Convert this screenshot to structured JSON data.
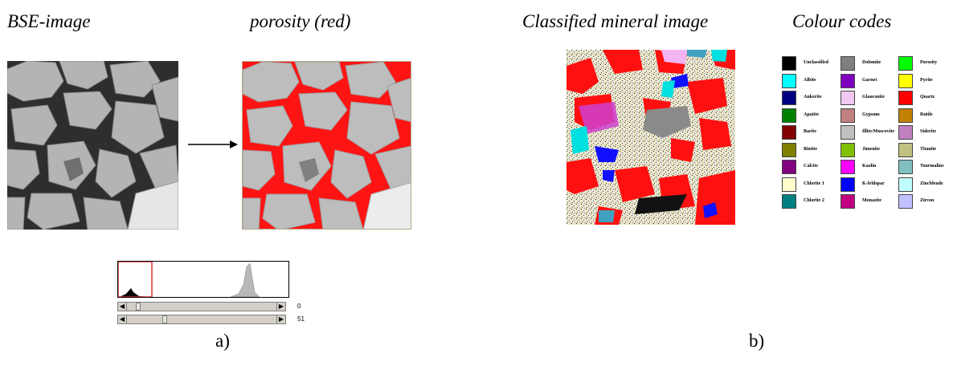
{
  "captions": {
    "bse": "BSE-image",
    "porosity": "porosity (red)",
    "classified": "Classified mineral image",
    "colour_codes": "Colour codes"
  },
  "panels": {
    "a": "a)",
    "b": "b)"
  },
  "sliders": {
    "top_value": "0",
    "bottom_value": "51",
    "top_fraction": 0.06,
    "bottom_fraction": 0.24
  },
  "legend": {
    "columns": [
      [
        {
          "label": "Unclassified",
          "color": "#000000"
        },
        {
          "label": "Albite",
          "color": "#00ffff"
        },
        {
          "label": "Ankerite",
          "color": "#000080"
        },
        {
          "label": "Apatite",
          "color": "#008000"
        },
        {
          "label": "Barite",
          "color": "#800000"
        },
        {
          "label": "Biotite",
          "color": "#808000"
        },
        {
          "label": "Calcite",
          "color": "#800080"
        },
        {
          "label": "Chlorite 1",
          "color": "#ffffcc"
        },
        {
          "label": "Chlorite 2",
          "color": "#008080"
        }
      ],
      [
        {
          "label": "Dolomite",
          "color": "#808080"
        },
        {
          "label": "Garnet",
          "color": "#8000c0"
        },
        {
          "label": "Glauconite",
          "color": "#f0c8f0"
        },
        {
          "label": "Gypsum",
          "color": "#c08080"
        },
        {
          "label": "Illite/Muscovite",
          "color": "#c0c0c0"
        },
        {
          "label": "Jimenite",
          "color": "#80c000"
        },
        {
          "label": "Kaolin",
          "color": "#ff00ff"
        },
        {
          "label": "K-feldspar",
          "color": "#0000ff"
        },
        {
          "label": "Monazite",
          "color": "#c00080"
        }
      ],
      [
        {
          "label": "Porosity",
          "color": "#00ff00"
        },
        {
          "label": "Pyrite",
          "color": "#ffff00"
        },
        {
          "label": "Quartz",
          "color": "#ff0000"
        },
        {
          "label": "Rutile",
          "color": "#c08000"
        },
        {
          "label": "Siderite",
          "color": "#c080c0"
        },
        {
          "label": "Titanite",
          "color": "#c0c080"
        },
        {
          "label": "Tourmaline",
          "color": "#80c0c0"
        },
        {
          "label": "Zincblende",
          "color": "#c0ffff"
        },
        {
          "label": "Zircon",
          "color": "#c0c0ff"
        }
      ]
    ]
  }
}
